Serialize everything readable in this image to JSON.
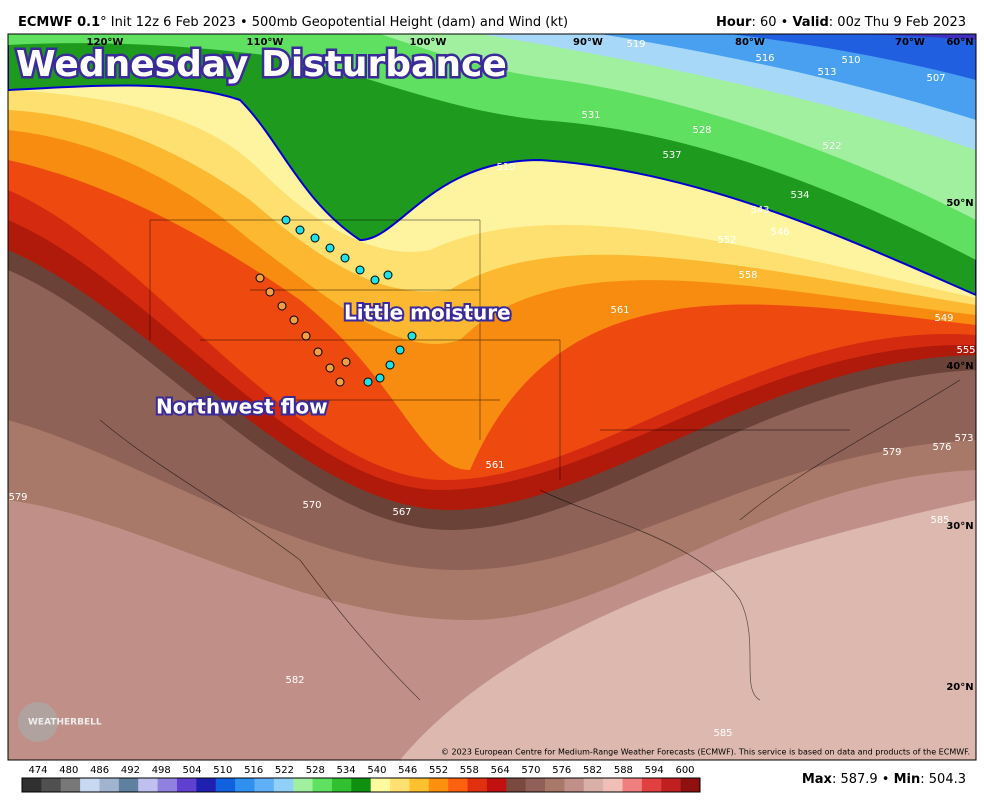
{
  "header": {
    "model": "ECMWF 0.1",
    "deg": "°",
    "init": " Init 12z 6 Feb 2023 • 500mb Geopotential Height (dam) and Wind (kt)",
    "hour_label": "Hour",
    "hour": ": 60 • ",
    "valid_label": "Valid",
    "valid": ": 00z Thu 9 Feb 2023"
  },
  "annotations": {
    "title": "Wednesday Disturbance",
    "note1": "Little moisture",
    "note2": "Northwest flow"
  },
  "graticule": [
    "120°W",
    "110°W",
    "100°W",
    "90°W",
    "80°W",
    "70°W",
    "60°N",
    "50°N",
    "40°N",
    "30°N",
    "20°N"
  ],
  "contour_labels": [
    "519",
    "516",
    "513",
    "510",
    "507",
    "531",
    "528",
    "537",
    "522",
    "534",
    "510",
    "543",
    "546",
    "552",
    "558",
    "561",
    "549",
    "555",
    "573",
    "576",
    "579",
    "561",
    "570",
    "567",
    "579",
    "585",
    "582",
    "585"
  ],
  "logo": "WEATHERBELL",
  "copyright": "© 2023 European Centre for Medium-Range Weather Forecasts (ECMWF). This service is based on data and products of the ECMWF.",
  "colorbar": {
    "ticks": [
      474,
      480,
      486,
      492,
      498,
      504,
      510,
      516,
      522,
      528,
      534,
      540,
      546,
      552,
      558,
      564,
      570,
      576,
      582,
      588,
      594,
      600
    ],
    "colors": [
      "#303030",
      "#505050",
      "#787878",
      "#c8d8f0",
      "#a0b4d0",
      "#6080a0",
      "#c0c0f0",
      "#9080e0",
      "#6040d0",
      "#2020b0",
      "#1060e0",
      "#3090f0",
      "#60b0f8",
      "#90d0f8",
      "#a0f0a0",
      "#60e060",
      "#30c030",
      "#109010",
      "#fffaa0",
      "#ffe070",
      "#ffc030",
      "#ff9010",
      "#ff6010",
      "#e03010",
      "#c01010",
      "#7a4a40",
      "#906058",
      "#a87868",
      "#c09088",
      "#d8b0a8",
      "#f0c0b8",
      "#f08080",
      "#e04040",
      "#c02020",
      "#901010"
    ]
  },
  "footer": {
    "max_label": "Max",
    "max": ": 587.9 • ",
    "min_label": "Min",
    "min": ": 504.3"
  }
}
